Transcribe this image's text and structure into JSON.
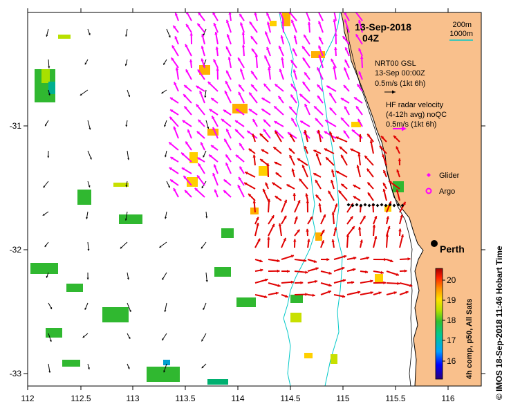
{
  "header": {
    "date": "13-Sep-2018",
    "time": "04Z"
  },
  "depth_key": {
    "c200": "200m",
    "c1000": "1000m",
    "c200_color": "#000000",
    "c1000_color": "#00c8c8"
  },
  "legend": {
    "model_line1": "NRT00 GSL",
    "model_line2": "13-Sep 00:00Z",
    "model_scale": "0.5m/s (1kt 6h)",
    "radar_line1": "HF radar velocity",
    "radar_line2": "(4-12h avg) noQC",
    "radar_scale": "0.5m/s (1kt 6h)",
    "glider": "Glider",
    "argo": "Argo"
  },
  "place": {
    "city": "Perth"
  },
  "axes": {
    "x_ticks": [
      "112",
      "112.5",
      "113",
      "113.5",
      "114",
      "114.5",
      "115",
      "115.5",
      "116"
    ],
    "y_ticks": [
      "-31",
      "-32",
      "-33"
    ],
    "lon_range": [
      112,
      116.3
    ],
    "lat_range": [
      -33.1,
      -30.1
    ]
  },
  "colorbar": {
    "label": "4h comp, p50, All Sats",
    "ticks": [
      "16",
      "17",
      "18",
      "19",
      "20"
    ],
    "range": [
      15.3,
      20.6
    ]
  },
  "credit": "© IMOS 18-Sep-2018 11:46 Hobart Time",
  "colors": {
    "land": "#f9c08c",
    "ocean": "#ffffff",
    "radar_arrow": "#ff00ff",
    "model_arrow": "#000000",
    "hf_red_arrow": "#e00000",
    "isobath_1000": "#00c8c8",
    "glider": "#ff00ff"
  }
}
